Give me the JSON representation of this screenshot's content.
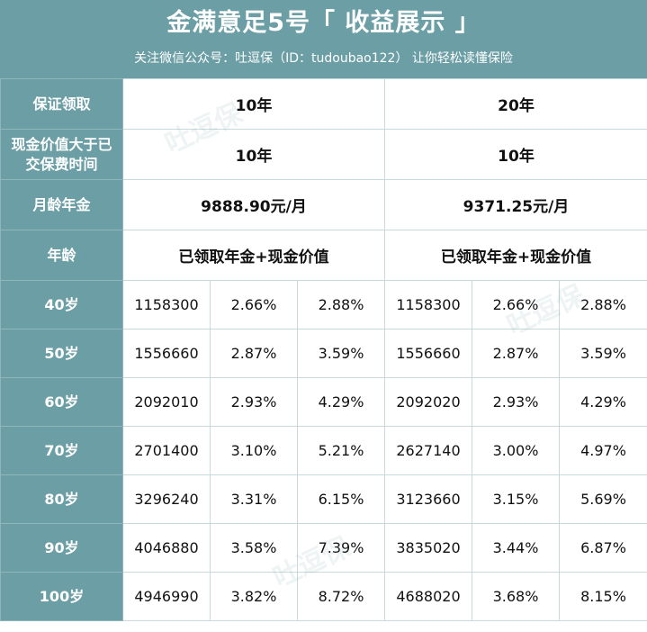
{
  "header": {
    "title": "金满意足5号「 收益展示 」",
    "subtitle": "关注微信公众号：吐逗保（ID：tudoubao122）  让你轻松读懂保险"
  },
  "rows": {
    "guarantee": {
      "label": "保证领取",
      "plan_a": "10年",
      "plan_b": "20年"
    },
    "cash_value": {
      "label": "现金价值大于已交保费时间",
      "plan_a": "10年",
      "plan_b": "10年"
    },
    "annuity": {
      "label": "月龄年金",
      "plan_a": "9888.90元/月",
      "plan_b": "9371.25元/月"
    },
    "age_header": {
      "label": "年龄",
      "plan_a": "已领取年金+现金价值",
      "plan_b": "已领取年金+现金价值"
    }
  },
  "ages": [
    {
      "age": "40岁",
      "a_value": "1158300",
      "a_r1": "2.66%",
      "a_r2": "2.88%",
      "b_value": "1158300",
      "b_r1": "2.66%",
      "b_r2": "2.88%"
    },
    {
      "age": "50岁",
      "a_value": "1556660",
      "a_r1": "2.87%",
      "a_r2": "3.59%",
      "b_value": "1556660",
      "b_r1": "2.87%",
      "b_r2": "3.59%"
    },
    {
      "age": "60岁",
      "a_value": "2092010",
      "a_r1": "2.93%",
      "a_r2": "4.29%",
      "b_value": "2092020",
      "b_r1": "2.93%",
      "b_r2": "4.29%"
    },
    {
      "age": "70岁",
      "a_value": "2701400",
      "a_r1": "3.10%",
      "a_r2": "5.21%",
      "b_value": "2627140",
      "b_r1": "3.00%",
      "b_r2": "4.97%"
    },
    {
      "age": "80岁",
      "a_value": "3296240",
      "a_r1": "3.31%",
      "a_r2": "6.15%",
      "b_value": "3123660",
      "b_r1": "3.15%",
      "b_r2": "5.69%"
    },
    {
      "age": "90岁",
      "a_value": "4046880",
      "a_r1": "3.58%",
      "a_r2": "7.39%",
      "b_value": "3835020",
      "b_r1": "3.44%",
      "b_r2": "6.87%"
    },
    {
      "age": "100岁",
      "a_value": "4946990",
      "a_r1": "3.82%",
      "a_r2": "8.72%",
      "b_value": "4688020",
      "b_r1": "3.68%",
      "b_r2": "8.15%"
    }
  ],
  "watermark": "吐逗保",
  "colors": {
    "header_bg": "#6b9ea5",
    "grid": "#c9dadb"
  }
}
